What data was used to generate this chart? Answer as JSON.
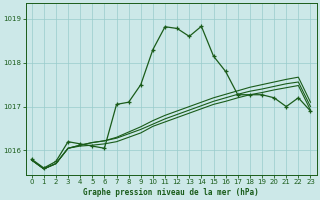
{
  "title": "Graphe pression niveau de la mer (hPa)",
  "bg_color": "#cce8e8",
  "grid_color": "#99cccc",
  "line_color": "#1a5c1a",
  "ylim": [
    1015.45,
    1019.35
  ],
  "yticks": [
    1016,
    1017,
    1018,
    1019
  ],
  "xlim": [
    -0.5,
    23.5
  ],
  "xticks": [
    0,
    1,
    2,
    3,
    4,
    5,
    6,
    7,
    8,
    9,
    10,
    11,
    12,
    13,
    14,
    15,
    16,
    17,
    18,
    19,
    20,
    21,
    22,
    23
  ],
  "series1": [
    1015.8,
    1015.6,
    1015.75,
    1016.2,
    1016.15,
    1016.1,
    1016.05,
    1017.05,
    1017.1,
    1017.5,
    1018.3,
    1018.82,
    1018.78,
    1018.6,
    1018.83,
    1018.15,
    1017.8,
    1017.27,
    1017.27,
    1017.27,
    1017.2,
    1017.0,
    1017.2,
    1016.9
  ],
  "series2": [
    1015.78,
    1015.58,
    1015.7,
    1016.05,
    1016.1,
    1016.12,
    1016.15,
    1016.2,
    1016.3,
    1016.4,
    1016.55,
    1016.65,
    1016.75,
    1016.85,
    1016.95,
    1017.05,
    1017.12,
    1017.2,
    1017.27,
    1017.32,
    1017.38,
    1017.43,
    1017.48,
    1016.92
  ],
  "series3": [
    1015.78,
    1015.58,
    1015.7,
    1016.05,
    1016.12,
    1016.18,
    1016.22,
    1016.28,
    1016.38,
    1016.48,
    1016.6,
    1016.72,
    1016.82,
    1016.92,
    1017.02,
    1017.12,
    1017.2,
    1017.28,
    1017.35,
    1017.4,
    1017.46,
    1017.52,
    1017.56,
    1017.0
  ],
  "series4": [
    1015.78,
    1015.58,
    1015.7,
    1016.05,
    1016.12,
    1016.18,
    1016.22,
    1016.3,
    1016.42,
    1016.54,
    1016.68,
    1016.8,
    1016.9,
    1017.0,
    1017.1,
    1017.2,
    1017.28,
    1017.36,
    1017.44,
    1017.5,
    1017.56,
    1017.62,
    1017.67,
    1017.1
  ]
}
